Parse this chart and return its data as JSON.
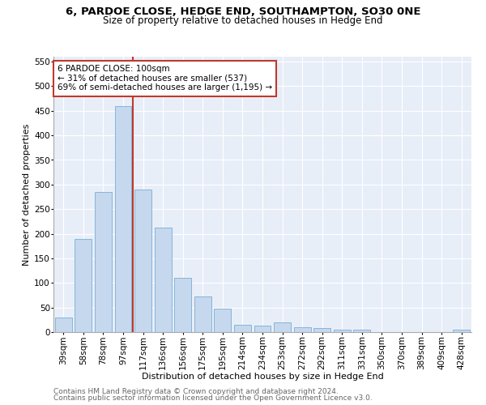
{
  "title1": "6, PARDOE CLOSE, HEDGE END, SOUTHAMPTON, SO30 0NE",
  "title2": "Size of property relative to detached houses in Hedge End",
  "xlabel": "Distribution of detached houses by size in Hedge End",
  "ylabel": "Number of detached properties",
  "categories": [
    "39sqm",
    "58sqm",
    "78sqm",
    "97sqm",
    "117sqm",
    "136sqm",
    "156sqm",
    "175sqm",
    "195sqm",
    "214sqm",
    "234sqm",
    "253sqm",
    "272sqm",
    "292sqm",
    "311sqm",
    "331sqm",
    "350sqm",
    "370sqm",
    "389sqm",
    "409sqm",
    "428sqm"
  ],
  "values": [
    30,
    190,
    285,
    460,
    290,
    213,
    110,
    73,
    47,
    15,
    13,
    20,
    10,
    8,
    5,
    5,
    0,
    0,
    0,
    0,
    5
  ],
  "bar_color": "#c5d8ee",
  "bar_edge_color": "#7aadd4",
  "vline_color": "#c0392b",
  "annotation_text": "6 PARDOE CLOSE: 100sqm\n← 31% of detached houses are smaller (537)\n69% of semi-detached houses are larger (1,195) →",
  "annotation_box_facecolor": "#ffffff",
  "annotation_box_edgecolor": "#c0392b",
  "ylim": [
    0,
    560
  ],
  "yticks": [
    0,
    50,
    100,
    150,
    200,
    250,
    300,
    350,
    400,
    450,
    500,
    550
  ],
  "bg_color": "#e8eef8",
  "footer1": "Contains HM Land Registry data © Crown copyright and database right 2024.",
  "footer2": "Contains public sector information licensed under the Open Government Licence v3.0.",
  "title1_fontsize": 9.5,
  "title2_fontsize": 8.5,
  "xlabel_fontsize": 8,
  "ylabel_fontsize": 8,
  "tick_fontsize": 7.5,
  "annot_fontsize": 7.5,
  "footer_fontsize": 6.5
}
